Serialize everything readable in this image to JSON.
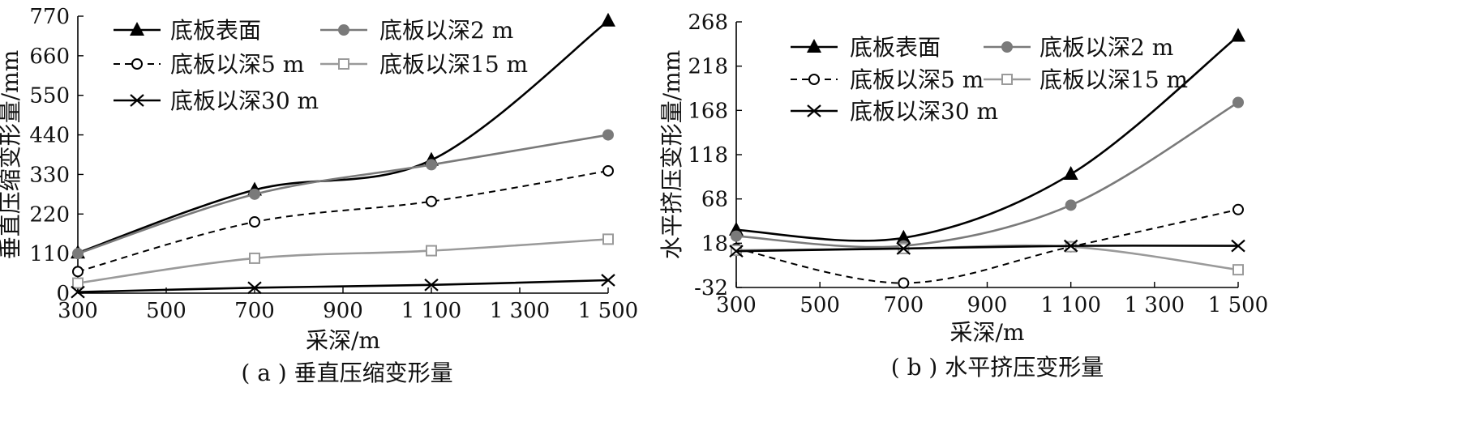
{
  "chart_data": [
    {
      "type": "line",
      "caption": "( a ) 垂直压缩变形量",
      "xlabel": "采深/m",
      "ylabel": "垂直压缩变形量/mm",
      "x": [
        300,
        700,
        1100,
        1500
      ],
      "x_ticks": [
        300,
        500,
        700,
        900,
        1100,
        1300,
        1500
      ],
      "x_tick_labels": [
        "300",
        "500",
        "700",
        "900",
        "1 100",
        "1 300",
        "1 500"
      ],
      "ylim": [
        0,
        770
      ],
      "y_ticks": [
        0,
        110,
        220,
        330,
        440,
        550,
        660,
        770
      ],
      "y_tick_labels": [
        "0",
        "110",
        "220",
        "330",
        "440",
        "550",
        "660",
        "770"
      ],
      "series": [
        {
          "name": "底板表面",
          "values": [
            112,
            287,
            370,
            757
          ]
        },
        {
          "name": "底板以深2 m",
          "values": [
            110,
            275,
            357,
            440
          ]
        },
        {
          "name": "底板以深5 m",
          "values": [
            60,
            198,
            255,
            340
          ]
        },
        {
          "name": "底板以深15 m",
          "values": [
            28,
            97,
            118,
            150
          ]
        },
        {
          "name": "底板以深30 m",
          "values": [
            3,
            15,
            23,
            36
          ]
        }
      ]
    },
    {
      "type": "line",
      "caption": "( b ) 水平挤压变形量",
      "xlabel": "采深/m",
      "ylabel": "水平挤压变形量/mm",
      "x": [
        300,
        700,
        1100,
        1500
      ],
      "x_ticks": [
        300,
        500,
        700,
        900,
        1100,
        1300,
        1500
      ],
      "x_tick_labels": [
        "300",
        "500",
        "700",
        "900",
        "1 100",
        "1 300",
        "1 500"
      ],
      "ylim": [
        -32,
        268
      ],
      "y_ticks": [
        -32,
        18,
        68,
        118,
        168,
        218,
        268
      ],
      "y_tick_labels": [
        "-32",
        "18",
        "68",
        "118",
        "168",
        "218",
        "268"
      ],
      "series": [
        {
          "name": "底板表面",
          "values": [
            33,
            24,
            96,
            252
          ]
        },
        {
          "name": "底板以深2 m",
          "values": [
            26,
            15,
            61,
            177
          ]
        },
        {
          "name": "底板以深5 m",
          "values": [
            12,
            -27,
            14,
            56
          ]
        },
        {
          "name": "底板以深15 m",
          "values": [
            10,
            12,
            14,
            -12
          ]
        },
        {
          "name": "底板以深30 m",
          "values": [
            9,
            12,
            15,
            15
          ]
        }
      ]
    }
  ],
  "styles": {
    "底板表面": {
      "color": "#000000",
      "dash": "",
      "marker": "triangle",
      "width": 2.6
    },
    "底板以深2 m": {
      "color": "#7a7a7a",
      "dash": "",
      "marker": "filled-circle",
      "width": 2.6
    },
    "底板以深5 m": {
      "color": "#000000",
      "dash": "8,6",
      "marker": "open-circle",
      "width": 2
    },
    "底板以深15 m": {
      "color": "#9a9a9a",
      "dash": "",
      "marker": "open-square",
      "width": 2.6
    },
    "底板以深30 m": {
      "color": "#000000",
      "dash": "",
      "marker": "x",
      "width": 2.6
    }
  }
}
